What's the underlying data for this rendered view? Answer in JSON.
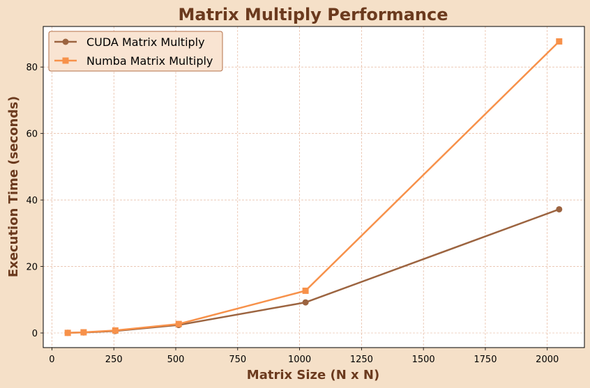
{
  "colors": {
    "background": "#f5e0c8",
    "plot_background": "#ffffff",
    "title": "#6b3a1e",
    "axis_label": "#6b3a1e",
    "grid": "#e0a98a",
    "legend_bg": "#f9e4d2",
    "legend_border": "#b4704a",
    "cuda": "#9c6440",
    "numba": "#f7914a"
  },
  "chart_data": {
    "type": "line",
    "title": "Matrix Multiply Performance",
    "xlabel": "Matrix Size (N x N)",
    "ylabel": "Execution Time (seconds)",
    "xlim": [
      -35,
      2150
    ],
    "ylim": [
      -4.4,
      92.2
    ],
    "xticks": [
      0,
      250,
      500,
      750,
      1000,
      1250,
      1500,
      1750,
      2000
    ],
    "yticks": [
      0,
      20,
      40,
      60,
      80
    ],
    "x": [
      64,
      128,
      256,
      512,
      1024,
      2048
    ],
    "grid": true,
    "legend_position": "top-left",
    "series": [
      {
        "name": "CUDA Matrix Multiply",
        "marker": "circle",
        "color": "#9c6440",
        "values": [
          0.05,
          0.15,
          0.6,
          2.4,
          9.2,
          37.2
        ]
      },
      {
        "name": "Numba Matrix Multiply",
        "marker": "square",
        "color": "#f7914a",
        "values": [
          0.03,
          0.2,
          0.75,
          2.7,
          12.7,
          87.7
        ]
      }
    ]
  }
}
